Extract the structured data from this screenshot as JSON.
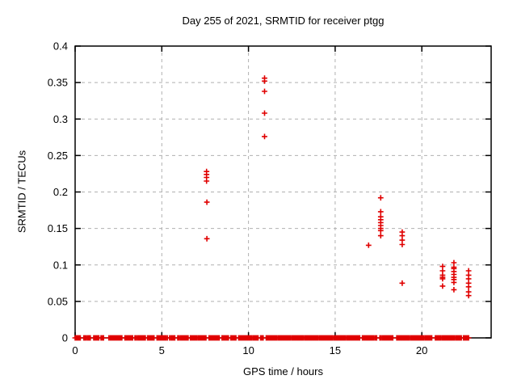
{
  "chart_data": {
    "type": "scatter",
    "title": "Day 255 of 2021, SRMTID for receiver ptgg",
    "xlabel": "GPS time / hours",
    "ylabel": "SRMTID / TECUs",
    "xlim": [
      0,
      24
    ],
    "ylim": [
      0,
      0.4
    ],
    "x_ticks": {
      "values": [
        0,
        5,
        10,
        15,
        20
      ],
      "labels": [
        "0",
        "5",
        "10",
        "15",
        "20"
      ]
    },
    "y_ticks": {
      "values": [
        0,
        0.05,
        0.1,
        0.15,
        0.2,
        0.25,
        0.3,
        0.35,
        0.4
      ],
      "labels": [
        "0",
        "0.05",
        "0.1",
        "0.15",
        "0.2",
        "0.25",
        "0.3",
        "0.35",
        "0.4"
      ]
    },
    "grid": "dashed",
    "grid_color": "#b0b0b0",
    "border_color": "#000000",
    "marker": "plus",
    "marker_color": "#e00000",
    "points": [
      [
        7.58,
        0.228
      ],
      [
        7.58,
        0.224
      ],
      [
        7.58,
        0.22
      ],
      [
        7.58,
        0.215
      ],
      [
        7.6,
        0.186
      ],
      [
        7.6,
        0.136
      ],
      [
        10.93,
        0.356
      ],
      [
        10.93,
        0.352
      ],
      [
        10.93,
        0.338
      ],
      [
        10.93,
        0.308
      ],
      [
        10.93,
        0.276
      ],
      [
        16.93,
        0.127
      ],
      [
        17.63,
        0.192
      ],
      [
        17.63,
        0.173
      ],
      [
        17.63,
        0.166
      ],
      [
        17.63,
        0.162
      ],
      [
        17.63,
        0.158
      ],
      [
        17.63,
        0.154
      ],
      [
        17.63,
        0.15
      ],
      [
        17.63,
        0.147
      ],
      [
        17.63,
        0.14
      ],
      [
        18.87,
        0.145
      ],
      [
        18.87,
        0.14
      ],
      [
        18.87,
        0.134
      ],
      [
        18.87,
        0.128
      ],
      [
        18.87,
        0.075
      ],
      [
        21.2,
        0.098
      ],
      [
        21.2,
        0.092
      ],
      [
        21.2,
        0.086
      ],
      [
        21.2,
        0.083
      ],
      [
        21.2,
        0.081
      ],
      [
        21.2,
        0.071
      ],
      [
        21.85,
        0.103
      ],
      [
        21.85,
        0.097
      ],
      [
        21.85,
        0.095
      ],
      [
        21.85,
        0.091
      ],
      [
        21.85,
        0.087
      ],
      [
        21.85,
        0.083
      ],
      [
        21.85,
        0.08
      ],
      [
        21.85,
        0.076
      ],
      [
        21.85,
        0.066
      ],
      [
        22.7,
        0.092
      ],
      [
        22.7,
        0.086
      ],
      [
        22.7,
        0.081
      ],
      [
        22.7,
        0.075
      ],
      [
        22.7,
        0.07
      ],
      [
        22.7,
        0.063
      ],
      [
        22.7,
        0.058
      ]
    ],
    "baseline": {
      "value": 0,
      "description": "dense runs of near-zero SRMTID values along the x-axis",
      "segments": [
        [
          0.0,
          0.37
        ],
        [
          0.5,
          0.93
        ],
        [
          1.07,
          1.4
        ],
        [
          1.49,
          1.68
        ],
        [
          1.95,
          2.75
        ],
        [
          2.87,
          3.33
        ],
        [
          3.45,
          4.05
        ],
        [
          4.18,
          4.6
        ],
        [
          4.72,
          5.33
        ],
        [
          5.45,
          5.8
        ],
        [
          5.92,
          6.55
        ],
        [
          6.65,
          7.62
        ],
        [
          7.72,
          8.35
        ],
        [
          8.47,
          8.85
        ],
        [
          8.98,
          9.33
        ],
        [
          9.43,
          10.58
        ],
        [
          10.7,
          10.88
        ],
        [
          11.02,
          16.45
        ],
        [
          16.57,
          17.45
        ],
        [
          17.58,
          18.4
        ],
        [
          18.55,
          20.62
        ],
        [
          20.78,
          22.28
        ],
        [
          22.4,
          22.75
        ]
      ]
    }
  }
}
